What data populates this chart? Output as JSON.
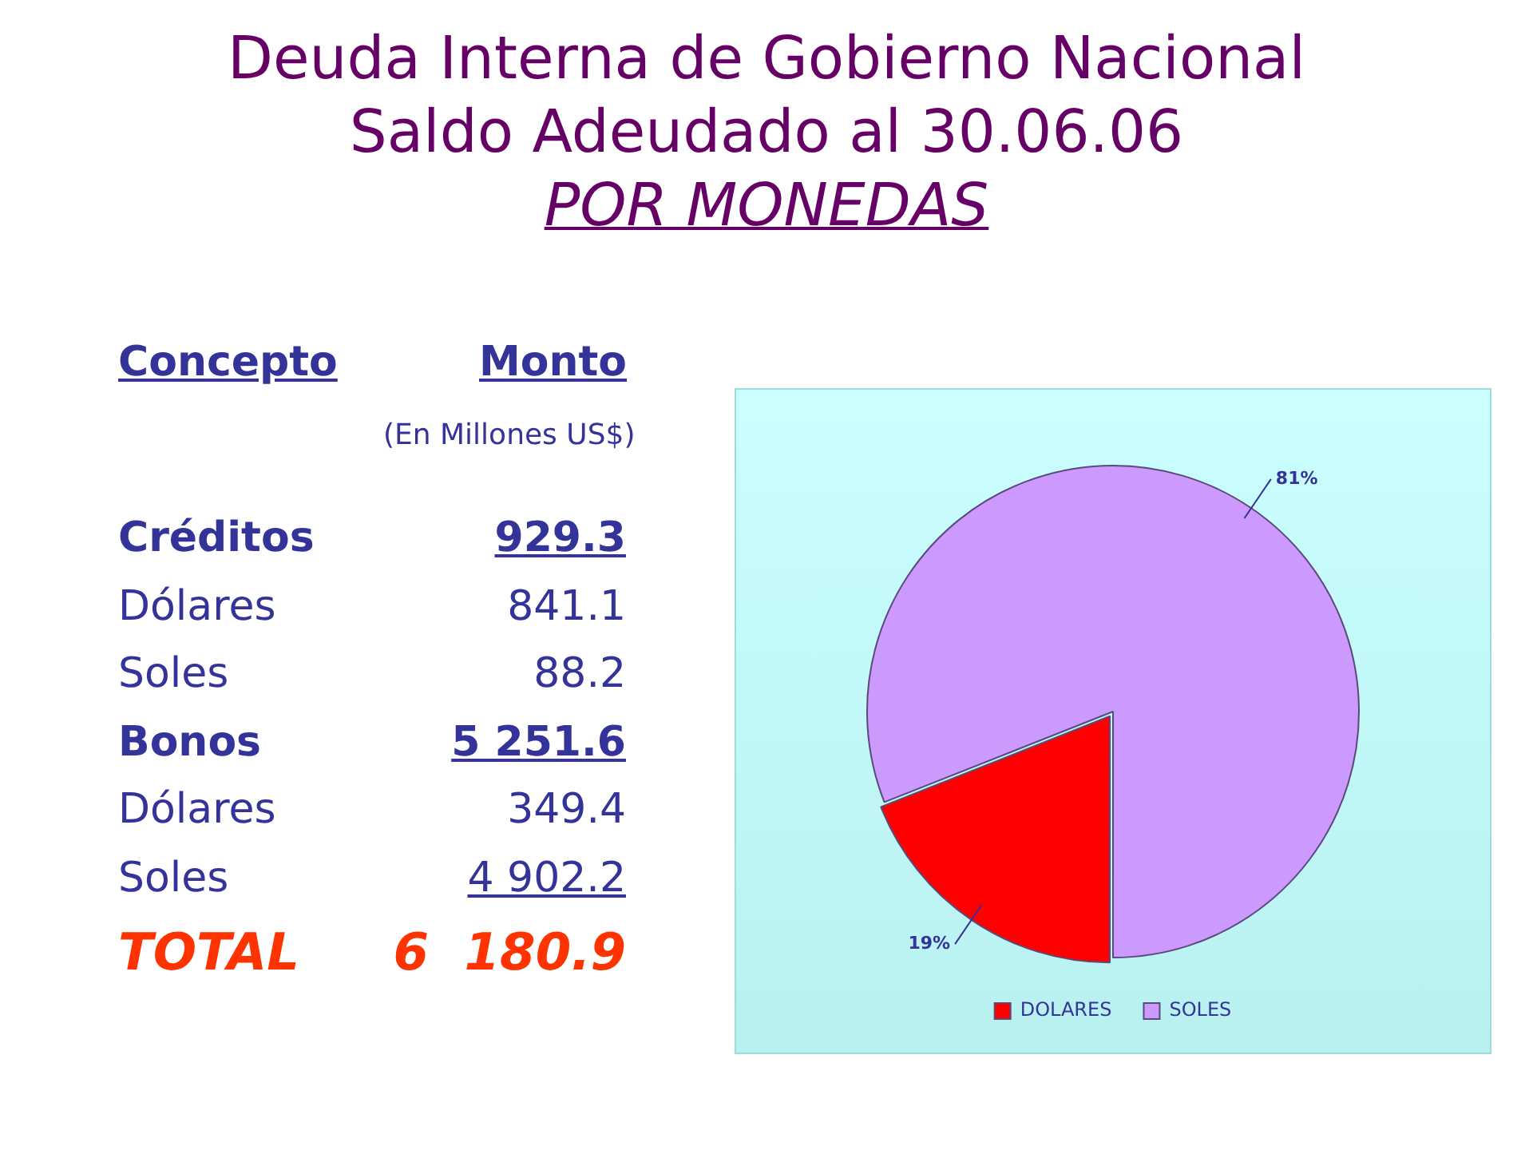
{
  "chart_data": [
    {
      "type": "other",
      "title": "Deuda Interna de Gobierno Nacional",
      "subtitle": "Saldo Adeudado al 30.06.06",
      "annotations": [
        "POR MONEDAS",
        "(En Millones US$)"
      ],
      "xlabel": "Concepto",
      "ylabel": "Monto",
      "categories": [
        "Créditos",
        "Dólares",
        "Soles",
        "Bonos",
        "Dólares",
        "Soles",
        "TOTAL"
      ],
      "value_labels": [
        "929.3",
        "841.1",
        "88.2",
        "5 251.6",
        "349.4",
        "4 902.2",
        "6  180.9"
      ]
    },
    {
      "type": "pie",
      "categories": [
        "DOLARES",
        "SOLES"
      ],
      "values": [
        19,
        81
      ],
      "value_labels": [
        "19%",
        "81%"
      ],
      "colors": [
        "#ff0000",
        "#cc99ff"
      ],
      "legend": "bottom"
    }
  ]
}
